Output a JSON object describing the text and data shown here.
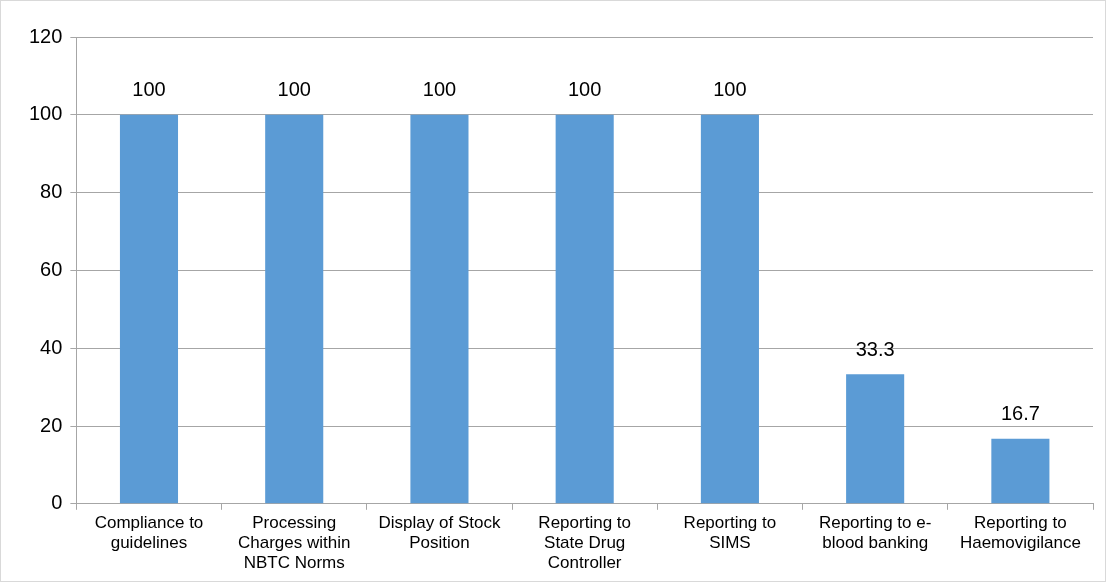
{
  "chart_data": {
    "type": "bar",
    "categories": [
      "Compliance to guidelines",
      "Processing Charges within NBTC Norms",
      "Display of Stock Position",
      "Reporting to State Drug Controller",
      "Reporting to SIMS",
      "Reporting to e-blood banking",
      "Reporting to Haemovigilance"
    ],
    "values": [
      100,
      100,
      100,
      100,
      100,
      33.3,
      16.7
    ],
    "color": "#5b9bd5",
    "ylim": [
      0,
      120
    ],
    "yticks": [
      0,
      20,
      40,
      60,
      80,
      100,
      120
    ],
    "grid": "y",
    "legend": false,
    "data_labels": true
  }
}
